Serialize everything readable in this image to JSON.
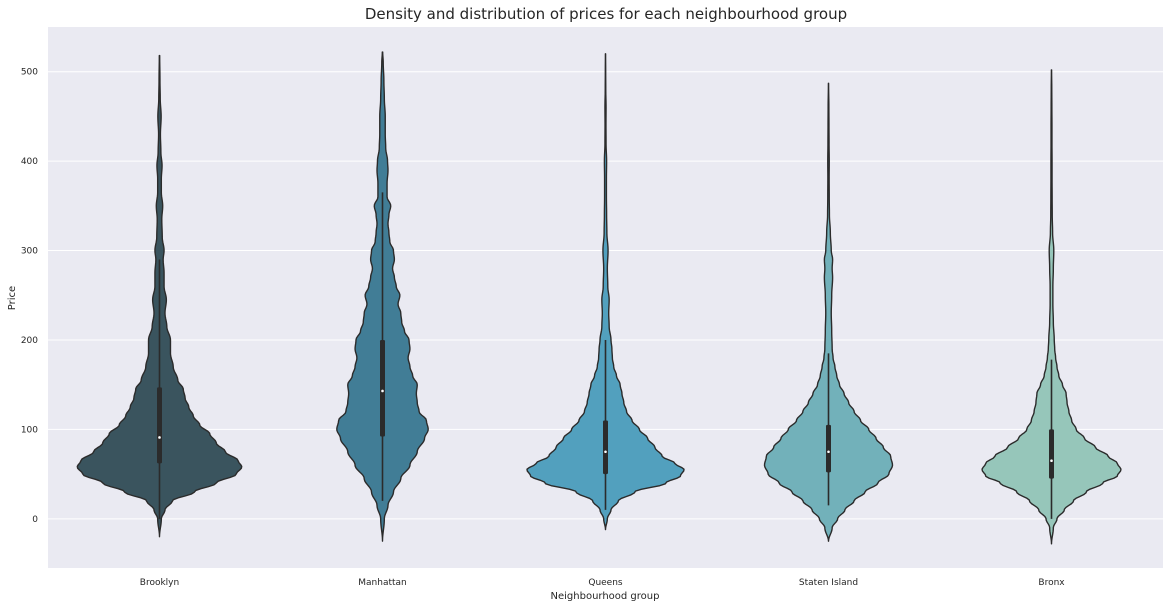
{
  "chart_data": {
    "type": "violin",
    "title": "Density and distribution of prices for each neighbourhood group",
    "xlabel": "Neighbourhood group",
    "ylabel": "Price",
    "ylim": [
      -55,
      550
    ],
    "yticks": [
      0,
      100,
      200,
      300,
      400,
      500
    ],
    "grid": true,
    "legend": false,
    "categories": [
      "Brooklyn",
      "Manhattan",
      "Queens",
      "Staten Island",
      "Bronx"
    ],
    "series": [
      {
        "category": "Brooklyn",
        "color": "#3a545e",
        "min": -20,
        "max": 518,
        "q1": 62,
        "median": 91,
        "q3": 147,
        "whisker_low": 0,
        "whisker_high": 290,
        "profile": [
          [
            -20,
            0
          ],
          [
            0,
            0.02
          ],
          [
            10,
            0.06
          ],
          [
            20,
            0.14
          ],
          [
            30,
            0.38
          ],
          [
            40,
            0.62
          ],
          [
            50,
            0.84
          ],
          [
            58,
            0.9
          ],
          [
            65,
            0.86
          ],
          [
            75,
            0.72
          ],
          [
            85,
            0.62
          ],
          [
            95,
            0.55
          ],
          [
            105,
            0.44
          ],
          [
            115,
            0.37
          ],
          [
            125,
            0.32
          ],
          [
            135,
            0.28
          ],
          [
            145,
            0.26
          ],
          [
            155,
            0.2
          ],
          [
            170,
            0.15
          ],
          [
            185,
            0.12
          ],
          [
            200,
            0.12
          ],
          [
            215,
            0.08
          ],
          [
            230,
            0.06
          ],
          [
            245,
            0.075
          ],
          [
            260,
            0.05
          ],
          [
            275,
            0.05
          ],
          [
            290,
            0.04
          ],
          [
            300,
            0.05
          ],
          [
            315,
            0.03
          ],
          [
            335,
            0.025
          ],
          [
            350,
            0.035
          ],
          [
            365,
            0.02
          ],
          [
            380,
            0.02
          ],
          [
            395,
            0.028
          ],
          [
            410,
            0.015
          ],
          [
            430,
            0.01
          ],
          [
            450,
            0.018
          ],
          [
            470,
            0.008
          ],
          [
            490,
            0.005
          ],
          [
            518,
            0.002
          ]
        ]
      },
      {
        "category": "Manhattan",
        "color": "#417d96",
        "min": -25,
        "max": 522,
        "q1": 92,
        "median": 143,
        "q3": 200,
        "whisker_low": 20,
        "whisker_high": 365,
        "profile": [
          [
            -25,
            0
          ],
          [
            0,
            0.02
          ],
          [
            15,
            0.06
          ],
          [
            30,
            0.12
          ],
          [
            45,
            0.2
          ],
          [
            60,
            0.3
          ],
          [
            75,
            0.38
          ],
          [
            90,
            0.46
          ],
          [
            100,
            0.5
          ],
          [
            110,
            0.48
          ],
          [
            120,
            0.4
          ],
          [
            130,
            0.38
          ],
          [
            140,
            0.37
          ],
          [
            150,
            0.38
          ],
          [
            160,
            0.33
          ],
          [
            170,
            0.3
          ],
          [
            180,
            0.28
          ],
          [
            190,
            0.3
          ],
          [
            200,
            0.29
          ],
          [
            210,
            0.24
          ],
          [
            220,
            0.21
          ],
          [
            230,
            0.2
          ],
          [
            240,
            0.17
          ],
          [
            250,
            0.19
          ],
          [
            260,
            0.15
          ],
          [
            270,
            0.13
          ],
          [
            280,
            0.11
          ],
          [
            290,
            0.13
          ],
          [
            300,
            0.12
          ],
          [
            310,
            0.08
          ],
          [
            320,
            0.07
          ],
          [
            330,
            0.06
          ],
          [
            340,
            0.07
          ],
          [
            350,
            0.09
          ],
          [
            360,
            0.05
          ],
          [
            375,
            0.05
          ],
          [
            390,
            0.06
          ],
          [
            400,
            0.055
          ],
          [
            415,
            0.035
          ],
          [
            430,
            0.03
          ],
          [
            450,
            0.03
          ],
          [
            470,
            0.02
          ],
          [
            490,
            0.015
          ],
          [
            510,
            0.008
          ],
          [
            522,
            0.002
          ]
        ]
      },
      {
        "category": "Queens",
        "color": "#52a0be",
        "min": -12,
        "max": 520,
        "q1": 50,
        "median": 75,
        "q3": 110,
        "whisker_low": 10,
        "whisker_high": 200,
        "profile": [
          [
            -12,
            0
          ],
          [
            0,
            0.02
          ],
          [
            10,
            0.06
          ],
          [
            20,
            0.14
          ],
          [
            30,
            0.32
          ],
          [
            40,
            0.66
          ],
          [
            48,
            0.82
          ],
          [
            55,
            0.86
          ],
          [
            62,
            0.76
          ],
          [
            70,
            0.62
          ],
          [
            80,
            0.54
          ],
          [
            90,
            0.46
          ],
          [
            100,
            0.37
          ],
          [
            110,
            0.29
          ],
          [
            120,
            0.23
          ],
          [
            130,
            0.2
          ],
          [
            140,
            0.18
          ],
          [
            150,
            0.16
          ],
          [
            160,
            0.12
          ],
          [
            170,
            0.09
          ],
          [
            180,
            0.075
          ],
          [
            190,
            0.07
          ],
          [
            200,
            0.06
          ],
          [
            215,
            0.04
          ],
          [
            230,
            0.035
          ],
          [
            245,
            0.04
          ],
          [
            260,
            0.025
          ],
          [
            280,
            0.02
          ],
          [
            300,
            0.028
          ],
          [
            320,
            0.015
          ],
          [
            340,
            0.012
          ],
          [
            360,
            0.01
          ],
          [
            380,
            0.01
          ],
          [
            400,
            0.012
          ],
          [
            420,
            0.006
          ],
          [
            440,
            0.005
          ],
          [
            460,
            0.006
          ],
          [
            480,
            0.003
          ],
          [
            500,
            0.002
          ],
          [
            520,
            0.001
          ]
        ]
      },
      {
        "category": "Staten Island",
        "color": "#72b1ba",
        "min": -25,
        "max": 487,
        "q1": 52,
        "median": 75,
        "q3": 105,
        "whisker_low": 15,
        "whisker_high": 185,
        "profile": [
          [
            -25,
            0
          ],
          [
            -10,
            0.04
          ],
          [
            0,
            0.1
          ],
          [
            10,
            0.18
          ],
          [
            20,
            0.28
          ],
          [
            30,
            0.4
          ],
          [
            40,
            0.54
          ],
          [
            50,
            0.66
          ],
          [
            60,
            0.7
          ],
          [
            70,
            0.68
          ],
          [
            80,
            0.6
          ],
          [
            90,
            0.52
          ],
          [
            100,
            0.44
          ],
          [
            110,
            0.35
          ],
          [
            120,
            0.28
          ],
          [
            130,
            0.22
          ],
          [
            140,
            0.17
          ],
          [
            150,
            0.12
          ],
          [
            160,
            0.09
          ],
          [
            170,
            0.07
          ],
          [
            180,
            0.05
          ],
          [
            190,
            0.04
          ],
          [
            210,
            0.035
          ],
          [
            230,
            0.03
          ],
          [
            250,
            0.035
          ],
          [
            270,
            0.045
          ],
          [
            280,
            0.04
          ],
          [
            290,
            0.045
          ],
          [
            300,
            0.03
          ],
          [
            320,
            0.02
          ],
          [
            340,
            0.01
          ],
          [
            360,
            0.008
          ],
          [
            380,
            0.007
          ],
          [
            400,
            0.008
          ],
          [
            420,
            0.006
          ],
          [
            440,
            0.005
          ],
          [
            460,
            0.004
          ],
          [
            487,
            0.001
          ]
        ]
      },
      {
        "category": "Bronx",
        "color": "#96c6ba",
        "min": -28,
        "max": 502,
        "q1": 45,
        "median": 65,
        "q3": 100,
        "whisker_low": 0,
        "whisker_high": 178,
        "profile": [
          [
            -28,
            0
          ],
          [
            -10,
            0.02
          ],
          [
            0,
            0.06
          ],
          [
            10,
            0.14
          ],
          [
            20,
            0.24
          ],
          [
            30,
            0.38
          ],
          [
            40,
            0.56
          ],
          [
            48,
            0.72
          ],
          [
            55,
            0.76
          ],
          [
            62,
            0.72
          ],
          [
            70,
            0.62
          ],
          [
            80,
            0.48
          ],
          [
            90,
            0.36
          ],
          [
            100,
            0.27
          ],
          [
            110,
            0.22
          ],
          [
            120,
            0.19
          ],
          [
            130,
            0.17
          ],
          [
            140,
            0.16
          ],
          [
            150,
            0.12
          ],
          [
            160,
            0.08
          ],
          [
            170,
            0.06
          ],
          [
            180,
            0.045
          ],
          [
            190,
            0.035
          ],
          [
            200,
            0.03
          ],
          [
            220,
            0.02
          ],
          [
            240,
            0.015
          ],
          [
            260,
            0.015
          ],
          [
            280,
            0.02
          ],
          [
            300,
            0.025
          ],
          [
            320,
            0.012
          ],
          [
            340,
            0.008
          ],
          [
            360,
            0.007
          ],
          [
            380,
            0.006
          ],
          [
            400,
            0.006
          ],
          [
            420,
            0.005
          ],
          [
            440,
            0.005
          ],
          [
            460,
            0.004
          ],
          [
            480,
            0.003
          ],
          [
            502,
            0.001
          ]
        ]
      }
    ]
  }
}
